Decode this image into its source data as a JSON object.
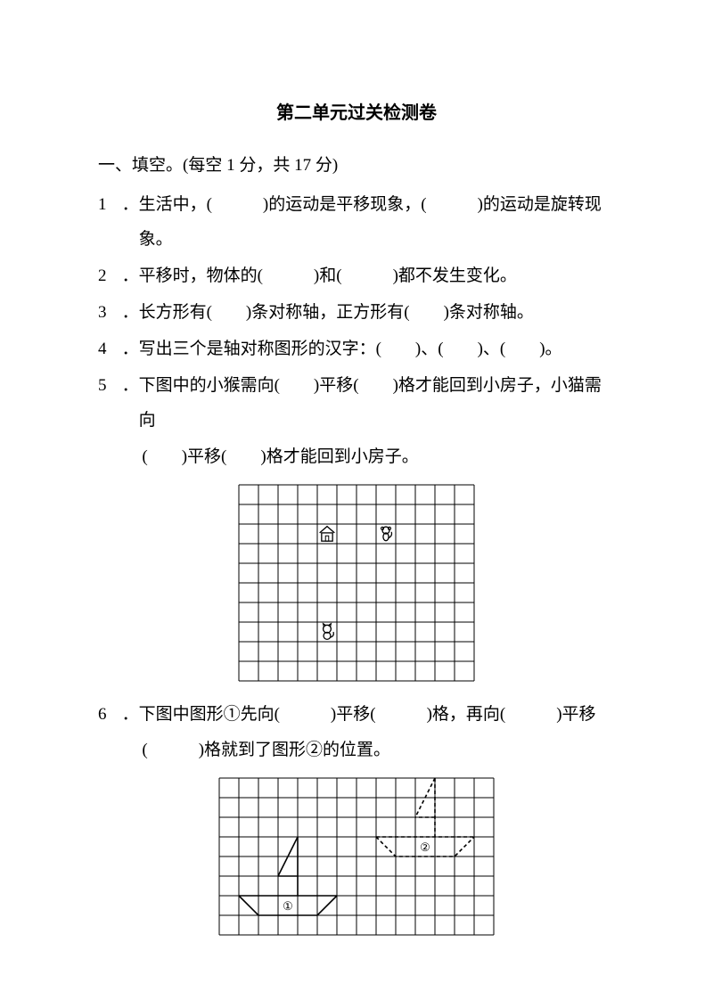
{
  "title": "第二单元过关检测卷",
  "section1": {
    "heading": "一、填空。(每空 1 分，共 17 分)",
    "q1": "生活中，(　　　)的运动是平移现象，(　　　)的运动是旋转现象。",
    "q2": "平移时，物体的(　　　)和(　　　)都不发生变化。",
    "q3": "长方形有(　　)条对称轴，正方形有(　　)条对称轴。",
    "q4": "写出三个是轴对称图形的汉字：(　　)、(　　)、(　　)。",
    "q5": "下图中的小猴需向(　　)平移(　　)格才能回到小房子，小猫需向",
    "q5_cont": "(　　)平移(　　)格才能回到小房子。",
    "q6": "下图中图形①先向(　　　)平移(　　　)格，再向(　　　)平移",
    "q6_cont": "(　　　)格就到了图形②的位置。"
  },
  "grid5": {
    "cols": 12,
    "rows": 10,
    "cell": 22,
    "stroke": "#000000",
    "background": "#ffffff",
    "house": {
      "col": 4,
      "row": 2
    },
    "monkey": {
      "col": 7,
      "row": 2
    },
    "cat": {
      "col": 4,
      "row": 7
    }
  },
  "grid6": {
    "cols": 14,
    "rows": 8,
    "cell": 22,
    "stroke": "#000000",
    "background": "#ffffff",
    "boat_solid": {
      "label": "①",
      "hull": [
        [
          1,
          6
        ],
        [
          2,
          7
        ],
        [
          5,
          7
        ],
        [
          6,
          6
        ]
      ],
      "mast_top": [
        4,
        3
      ],
      "sail": [
        [
          4,
          3
        ],
        [
          4,
          5
        ],
        [
          3,
          5
        ]
      ]
    },
    "boat_dashed": {
      "label": "②",
      "hull": [
        [
          8,
          3
        ],
        [
          9,
          4
        ],
        [
          12,
          4
        ],
        [
          13,
          3
        ]
      ],
      "mast_top": [
        11,
        0
      ],
      "sail": [
        [
          11,
          0
        ],
        [
          11,
          2
        ],
        [
          10,
          2
        ]
      ]
    }
  }
}
